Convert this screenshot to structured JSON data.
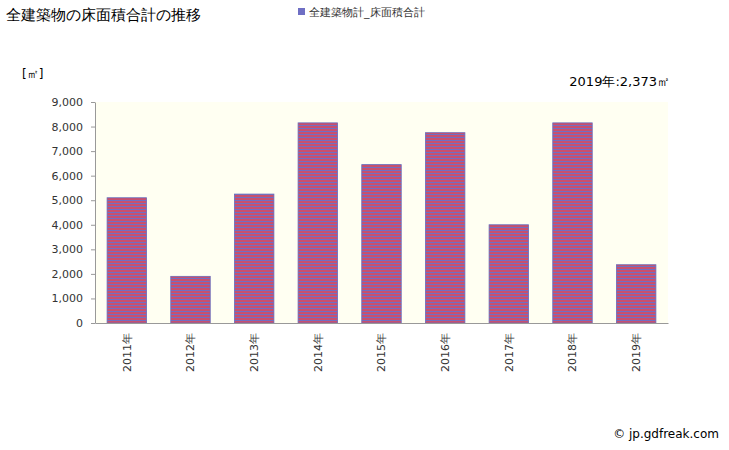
{
  "chart_data": {
    "type": "bar",
    "title": "全建築物の床面積合計の推移",
    "y_label": "[㎡]",
    "categories": [
      "2011年",
      "2012年",
      "2013年",
      "2014年",
      "2015年",
      "2016年",
      "2017年",
      "2018年",
      "2019年"
    ],
    "series": [
      {
        "name": "全建築物計_床面積合計",
        "color": "#c8506e",
        "values": [
          5100,
          1900,
          5250,
          8150,
          6450,
          7750,
          4000,
          8150,
          2373
        ]
      }
    ],
    "ylim": [
      0,
      9000
    ],
    "yticks": [
      0,
      {
        "value": 1000,
        "label": "1,000"
      },
      {
        "value": 2000,
        "label": "2,000"
      },
      {
        "value": 3000,
        "label": "3,000"
      },
      {
        "value": 4000,
        "label": "4,000"
      },
      {
        "value": 5000,
        "label": "5,000"
      },
      {
        "value": 6000,
        "label": "6,000"
      },
      {
        "value": 7000,
        "label": "7,000"
      },
      {
        "value": 8000,
        "label": "8,000"
      },
      {
        "value": 9000,
        "label": "9,000"
      }
    ],
    "grid": false,
    "legend": "top",
    "annotations": [
      "2019年:2,373㎡",
      "© jp.gdfreak.com"
    ]
  }
}
